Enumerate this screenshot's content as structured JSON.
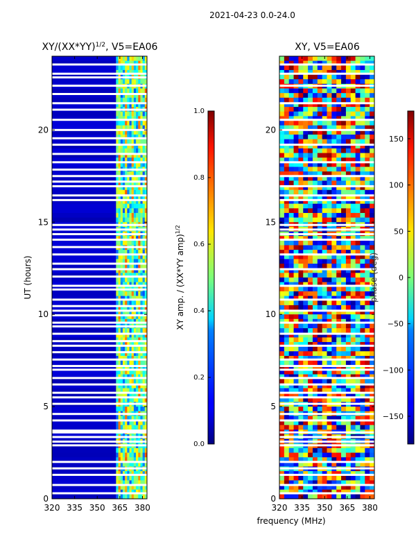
{
  "figure": {
    "suptitle": "2021-04-23 0.0-24.0",
    "xlabel": "frequency (MHz)"
  },
  "chart_data": [
    {
      "type": "heatmap",
      "title": "XY/(XX*YY)^1/2, V5=EA06",
      "title_main": "XY/(XX*YY)",
      "title_sup": "1/2",
      "title_tail": ", V5=EA06",
      "xlabel": "frequency (MHz)",
      "ylabel": "UT (hours)",
      "xlim": [
        320,
        383
      ],
      "ylim": [
        0,
        24
      ],
      "xticks": [
        320,
        335,
        350,
        365,
        380
      ],
      "yticks": [
        0,
        5,
        10,
        15,
        20
      ],
      "colorbar": {
        "label": "XY amp. / (XX*YY amp)^1/2",
        "label_main": "XY amp. / (XX*YY amp)",
        "label_sup": "1/2",
        "range": [
          0.0,
          1.0
        ],
        "ticks": [
          "0.0",
          "0.2",
          "0.4",
          "0.6",
          "0.8",
          "1.0"
        ],
        "colormap": "jet"
      },
      "flagged_rows_hours": [
        0.3,
        0.75,
        1.3,
        1.65,
        2.0,
        2.9,
        3.1,
        3.35,
        3.6,
        3.7,
        4.25,
        4.6,
        5.15,
        5.5,
        5.75,
        6.2,
        6.55,
        7.0,
        7.2,
        7.55,
        7.95,
        8.3,
        8.55,
        8.95,
        9.35,
        9.55,
        9.95,
        10.2,
        10.45,
        10.8,
        11.35,
        11.55,
        12.05,
        12.45,
        12.75,
        13.25,
        13.65,
        14.05,
        14.35,
        14.6,
        14.85,
        16.2,
        16.45,
        16.95,
        17.2,
        17.5,
        17.85,
        18.25,
        18.7,
        19.2,
        19.55,
        20.0,
        20.55,
        21.1,
        21.45,
        21.95,
        22.4,
        22.85,
        23.05,
        23.55
      ],
      "description_levels": {
        "low_band_320_363": 0.05,
        "high_band_363_383": 0.45
      }
    },
    {
      "type": "heatmap",
      "title": "XY, V5=EA06",
      "xlabel": "frequency (MHz)",
      "ylabel": "",
      "xlim": [
        320,
        383
      ],
      "ylim": [
        0,
        24
      ],
      "xticks": [
        320,
        335,
        350,
        365,
        380
      ],
      "yticks": [
        0,
        5,
        10,
        15,
        20
      ],
      "colorbar": {
        "label": "phase (deg)",
        "range": [
          -180,
          180
        ],
        "ticks": [
          "150",
          "100",
          "50",
          "0",
          "−50",
          "−100",
          "−150"
        ],
        "tick_values": [
          150,
          100,
          50,
          0,
          -50,
          -100,
          -150
        ],
        "colormap": "jet"
      },
      "flagged_rows_hours": [
        0.3,
        0.75,
        1.3,
        1.65,
        2.0,
        2.9,
        3.1,
        3.35,
        3.6,
        4.25,
        4.6,
        5.15,
        5.5,
        5.75,
        6.2,
        6.55,
        7.0,
        7.2,
        7.55,
        8.3,
        8.95,
        9.55,
        10.2,
        10.8,
        11.55,
        12.45,
        13.25,
        14.05,
        14.35,
        14.6,
        14.85,
        16.2,
        16.45,
        16.95,
        17.5,
        18.25,
        19.2,
        20.0,
        20.55,
        21.45,
        22.4,
        23.05,
        23.55
      ]
    }
  ]
}
